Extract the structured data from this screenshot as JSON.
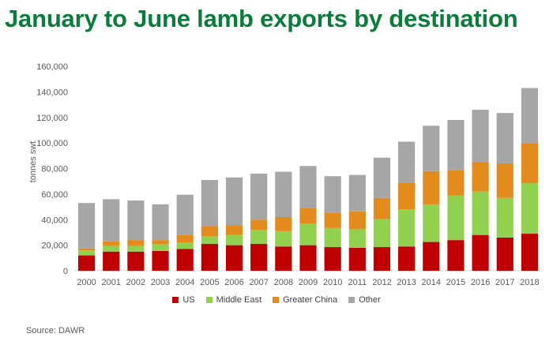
{
  "chart_data": {
    "type": "bar",
    "stacked": true,
    "title": "January to June lamb exports by destination",
    "ylabel": "tonnes swt",
    "xlabel": "",
    "ylim": [
      0,
      160000
    ],
    "yticks": [
      "0",
      "20,000",
      "40,000",
      "60,000",
      "80,000",
      "100,000",
      "120,000",
      "140,000",
      "160,000"
    ],
    "grid": false,
    "legend_position": "bottom",
    "categories": [
      "2000",
      "2001",
      "2002",
      "2003",
      "2004",
      "2005",
      "2006",
      "2007",
      "2008",
      "2009",
      "2010",
      "2011",
      "2012",
      "2013",
      "2014",
      "2015",
      "2016",
      "2017",
      "2018"
    ],
    "series": [
      {
        "name": "US",
        "color": "#c00000",
        "values": [
          12000,
          15000,
          15000,
          15500,
          17000,
          21000,
          20000,
          21000,
          19000,
          20000,
          18500,
          18000,
          18500,
          19000,
          22500,
          24000,
          28000,
          26000,
          29000
        ]
      },
      {
        "name": "Middle East",
        "color": "#92d050",
        "values": [
          4000,
          4500,
          4500,
          5500,
          5000,
          6000,
          8000,
          11000,
          12000,
          17000,
          15000,
          14500,
          22000,
          29000,
          29500,
          35000,
          34000,
          31000,
          39500
        ]
      },
      {
        "name": "Greater China",
        "color": "#e38b1c",
        "values": [
          1500,
          3500,
          4500,
          3000,
          6000,
          8000,
          7500,
          8000,
          11000,
          12000,
          12000,
          14000,
          16500,
          21000,
          26000,
          19500,
          23000,
          27000,
          31500
        ]
      },
      {
        "name": "Other",
        "color": "#a6a6a6",
        "values": [
          35500,
          33000,
          31000,
          28000,
          31500,
          36000,
          37500,
          36000,
          35500,
          33000,
          28500,
          28500,
          31500,
          32000,
          35500,
          39500,
          41000,
          39500,
          43000
        ]
      }
    ],
    "source": "Source: DAWR"
  }
}
